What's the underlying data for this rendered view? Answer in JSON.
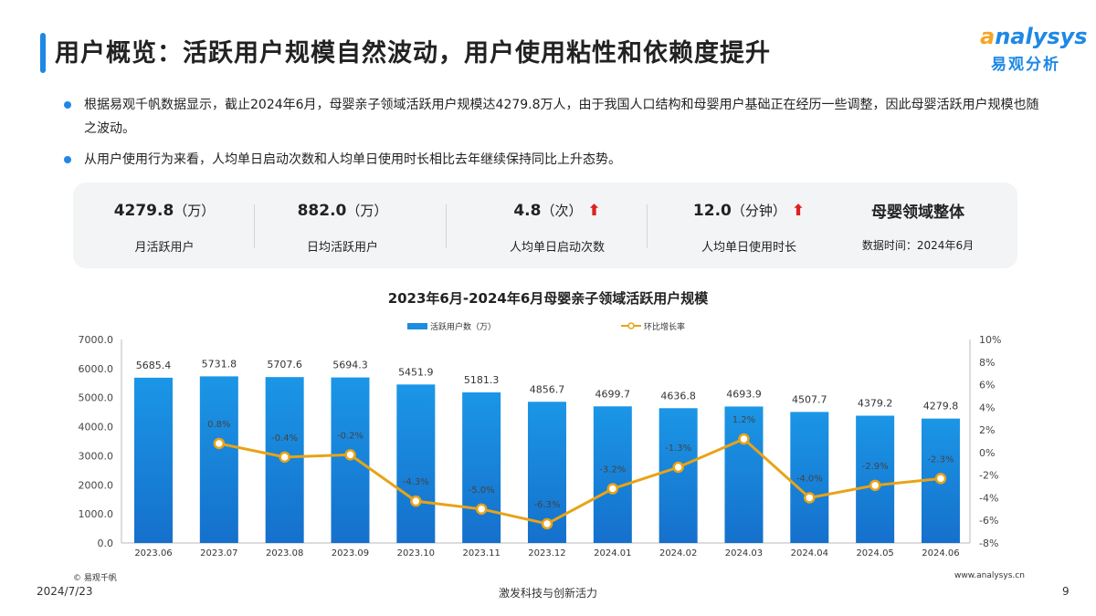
{
  "header": {
    "title": "用户概览：活跃用户规模自然波动，用户使用粘性和依赖度提升",
    "logo_en": "analysys",
    "logo_cn": "易观分析"
  },
  "bullets": [
    "根据易观千帆数据显示，截止2024年6月，母婴亲子领域活跃用户规模达4279.8万人，由于我国人口结构和母婴用户基础正在经历一些调整，因此母婴活跃用户规模也随之波动。",
    "从用户使用行为来看，人均单日启动次数和人均单日使用时长相比去年继续保持同比上升态势。"
  ],
  "kpis": [
    {
      "value": "4279.8",
      "unit": "（万）",
      "label": "月活跃用户",
      "trend": ""
    },
    {
      "value": "882.0",
      "unit": "（万）",
      "label": "日均活跃用户",
      "trend": ""
    },
    {
      "value": "4.8",
      "unit": "（次）",
      "label": "人均单日启动次数",
      "trend": "up"
    },
    {
      "value": "12.0",
      "unit": "（分钟）",
      "label": "人均单日使用时长",
      "trend": "up"
    }
  ],
  "kpi_summary": {
    "title": "母婴领域整体",
    "date": "数据时间：2024年6月"
  },
  "colors": {
    "bar": "#1a8de0",
    "line": "#e8a317",
    "accent": "#1e88e5",
    "up_arrow": "#e02020"
  },
  "chart_data": {
    "type": "bar+line",
    "title": "2023年6月-2024年6月母婴亲子领域活跃用户规模",
    "categories": [
      "2023.06",
      "2023.07",
      "2023.08",
      "2023.09",
      "2023.10",
      "2023.11",
      "2023.12",
      "2024.01",
      "2024.02",
      "2024.03",
      "2024.04",
      "2024.05",
      "2024.06"
    ],
    "series": [
      {
        "name": "活跃用户数（万）",
        "type": "bar",
        "axis": "left",
        "values": [
          5685.4,
          5731.8,
          5707.6,
          5694.3,
          5451.9,
          5181.3,
          4856.7,
          4699.7,
          4636.8,
          4693.9,
          4507.7,
          4379.2,
          4279.8
        ]
      },
      {
        "name": "环比增长率",
        "type": "line",
        "axis": "right",
        "values": [
          null,
          0.8,
          -0.4,
          -0.2,
          -4.3,
          -5.0,
          -6.3,
          -3.2,
          -1.3,
          1.2,
          -4.0,
          -2.9,
          -2.3
        ]
      }
    ],
    "left_axis": {
      "range": [
        0,
        7000
      ],
      "ticks": [
        "0.0",
        "1000.0",
        "2000.0",
        "3000.0",
        "4000.0",
        "5000.0",
        "6000.0",
        "7000.0"
      ]
    },
    "right_axis": {
      "range": [
        -8,
        10
      ],
      "ticks": [
        "-8%",
        "-6%",
        "-4%",
        "-2%",
        "0%",
        "2%",
        "4%",
        "6%",
        "8%",
        "10%"
      ]
    },
    "legend": "top",
    "grid": false
  },
  "footer": {
    "source": "© 易观千帆",
    "date": "2024/7/23",
    "slogan": "激发科技与创新活力",
    "url": "www.analysys.cn",
    "page": "9"
  }
}
